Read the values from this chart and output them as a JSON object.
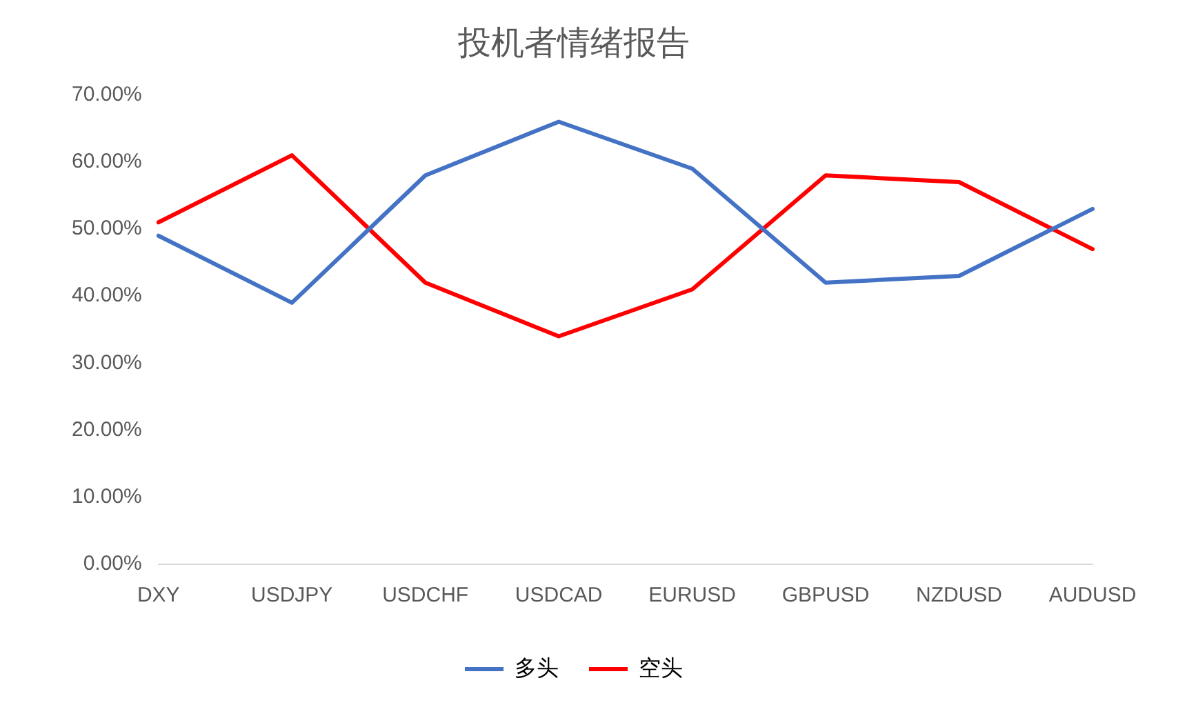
{
  "chart_data": {
    "type": "line",
    "title": "投机者情绪报告",
    "categories": [
      "DXY",
      "USDJPY",
      "USDCHF",
      "USDCAD",
      "EURUSD",
      "GBPUSD",
      "NZDUSD",
      "AUDUSD"
    ],
    "series": [
      {
        "name": "多头",
        "color": "#4472c4",
        "values": [
          49,
          39,
          58,
          66,
          59,
          42,
          43,
          53
        ]
      },
      {
        "name": "空头",
        "color": "#ff0000",
        "values": [
          51,
          61,
          42,
          34,
          41,
          58,
          57,
          47
        ]
      }
    ],
    "ylim": [
      0,
      70
    ],
    "yticks": [
      {
        "value": 0,
        "label": "0.00%"
      },
      {
        "value": 10,
        "label": "10.00%"
      },
      {
        "value": 20,
        "label": "20.00%"
      },
      {
        "value": 30,
        "label": "30.00%"
      },
      {
        "value": 40,
        "label": "40.00%"
      },
      {
        "value": 50,
        "label": "50.00%"
      },
      {
        "value": 60,
        "label": "60.00%"
      },
      {
        "value": 70,
        "label": "70.00%"
      }
    ],
    "grid": false,
    "legend": "bottom",
    "marker": "none",
    "line_style": "solid"
  }
}
